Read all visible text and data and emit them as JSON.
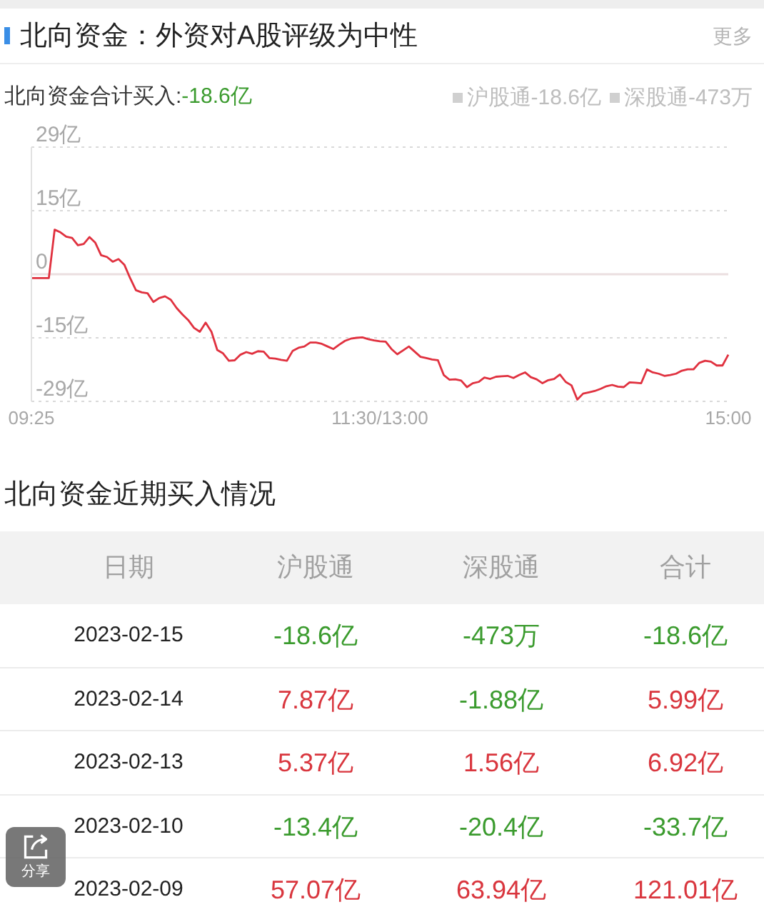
{
  "chart_data": [
    {
      "type": "line",
      "title": "北向资金：外资对A股评级为中性",
      "subtitle": "北向资金合计买入:-18.6亿",
      "annotations": [
        "更多",
        "沪股通-18.6亿",
        "深股通-473万"
      ],
      "categories": [
        "09:25",
        null,
        null,
        null,
        null,
        null,
        null,
        null,
        null,
        null,
        null,
        null,
        null,
        null,
        null,
        null,
        null,
        null,
        null,
        null,
        null,
        null,
        null,
        null,
        null,
        null,
        null,
        null,
        null,
        null,
        null,
        null,
        null,
        null,
        null,
        null,
        null,
        null,
        null,
        null,
        null,
        null,
        null,
        null,
        null,
        null,
        null,
        null,
        null,
        null,
        null,
        null,
        null,
        null,
        null,
        null,
        null,
        null,
        null,
        null,
        "11:30/13:00",
        null,
        null,
        null,
        null,
        null,
        null,
        null,
        null,
        null,
        null,
        null,
        null,
        null,
        null,
        null,
        null,
        null,
        null,
        null,
        null,
        null,
        null,
        null,
        null,
        null,
        null,
        null,
        null,
        null,
        null,
        null,
        null,
        null,
        null,
        null,
        null,
        null,
        null,
        null,
        null,
        null,
        null,
        null,
        null,
        null,
        null,
        null,
        null,
        null,
        null,
        null,
        null,
        null,
        null,
        null,
        null,
        null,
        null,
        null,
        "15:00"
      ],
      "values": [
        -0.9,
        -0.9,
        -0.9,
        -0.9,
        10.3,
        9.7,
        8.7,
        8.4,
        6.7,
        7.0,
        8.6,
        7.3,
        4.4,
        4.0,
        2.9,
        3.5,
        2.2,
        -0.9,
        -3.7,
        -4.2,
        -4.4,
        -6.4,
        -5.5,
        -5.1,
        -5.9,
        -7.8,
        -9.3,
        -10.6,
        -12.4,
        -13.3,
        -11.2,
        -13.3,
        -17.5,
        -18.3,
        -20.0,
        -19.9,
        -18.6,
        -18.0,
        -18.4,
        -17.8,
        -17.9,
        -19.4,
        -19.5,
        -19.8,
        -20.0,
        -17.7,
        -17.0,
        -16.7,
        -15.8,
        -15.8,
        -16.1,
        -16.7,
        -17.3,
        -16.3,
        -15.4,
        -14.9,
        -14.7,
        -14.6,
        -15.0,
        -15.3,
        -15.5,
        -15.6,
        -17.3,
        -18.5,
        -17.6,
        -16.7,
        -17.9,
        -19.1,
        -19.4,
        -19.7,
        -19.9,
        -23.3,
        -24.4,
        -24.3,
        -24.6,
        -26.1,
        -25.2,
        -24.9,
        -23.9,
        -24.2,
        -23.7,
        -23.6,
        -23.5,
        -24.0,
        -23.3,
        -22.7,
        -23.8,
        -24.3,
        -25.2,
        -24.5,
        -24.2,
        -23.2,
        -24.9,
        -25.7,
        -29.0,
        -27.6,
        -27.3,
        -27.0,
        -26.5,
        -25.9,
        -25.6,
        -26.0,
        -26.1,
        -25.0,
        -25.1,
        -25.2,
        -22.0,
        -22.7,
        -23.0,
        -23.5,
        -23.3,
        -23.0,
        -22.3,
        -22.0,
        -22.0,
        -20.5,
        -20.0,
        -20.2,
        -21.1,
        -21.1,
        -18.6
      ],
      "color": "#e0313f",
      "ylim": [
        -29.4,
        29.4
      ],
      "yticks": [
        {
          "value": -29.4,
          "label": "-29亿"
        },
        {
          "value": -14.7,
          "label": "-15亿"
        },
        0,
        {
          "value": 14.7,
          "label": "15亿"
        },
        {
          "value": 29.4,
          "label": "29亿"
        }
      ],
      "grid": "y"
    },
    {
      "type": "other",
      "title": "北向资金近期买入情况",
      "ylabel": "日期",
      "categories": [
        "沪股通",
        "深股通",
        "合计"
      ],
      "y_categories": [
        "2023-02-15",
        "2023-02-14",
        "2023-02-13",
        "2023-02-10",
        "2023-02-09"
      ],
      "cell_labels": [
        [
          "-18.6亿",
          "-473万",
          "-18.6亿"
        ],
        [
          "7.87亿",
          "-1.88亿",
          "5.99亿"
        ],
        [
          "5.37亿",
          "1.56亿",
          "6.92亿"
        ],
        [
          "-13.4亿",
          "-20.4亿",
          "-33.7亿"
        ],
        [
          "57.07亿",
          "63.94亿",
          "121.01亿"
        ]
      ],
      "colors": [
        [
          "#3b9b2e",
          "#3b9b2e",
          "#3b9b2e"
        ],
        [
          "#d9363e",
          "#3b9b2e",
          "#d9363e"
        ],
        [
          "#d9363e",
          "#d9363e",
          "#d9363e"
        ],
        [
          "#3b9b2e",
          "#3b9b2e",
          "#3b9b2e"
        ],
        [
          "#d9363e",
          "#d9363e",
          "#d9363e"
        ]
      ],
      "annotations": [
        "分享"
      ]
    }
  ]
}
